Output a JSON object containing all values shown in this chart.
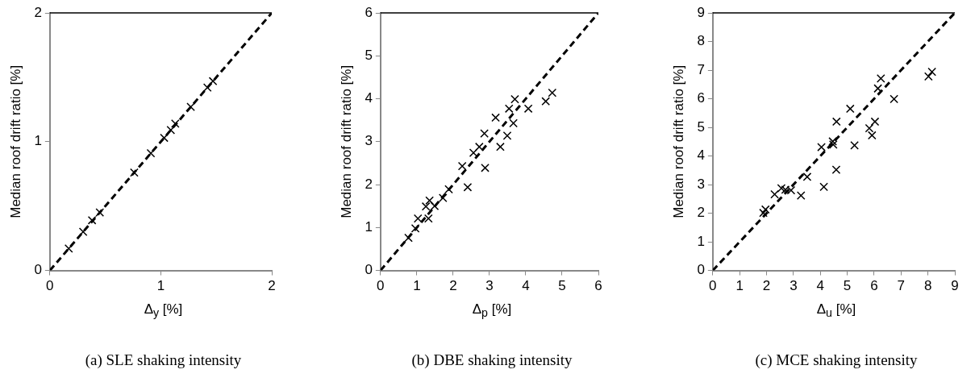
{
  "chart_data": [
    {
      "type": "scatter",
      "xlabel": "Δ$_{y}$ [%]",
      "ylabel": "Median roof drift ratio [%]",
      "xlim": [
        0,
        2
      ],
      "xticks": [
        0,
        1,
        2
      ],
      "ylim": [
        0,
        2
      ],
      "yticks": [
        0,
        1,
        2
      ],
      "grid": false,
      "annotations": [
        "(a) SLE shaking intensity"
      ],
      "series": [
        {
          "type": "scatter",
          "marker": "cross",
          "color": "#000000",
          "x": [
            0.17,
            0.3,
            0.38,
            0.45,
            0.76,
            0.91,
            1.03,
            1.09,
            1.13,
            1.27,
            1.42,
            1.47
          ],
          "values": [
            0.17,
            0.3,
            0.39,
            0.45,
            0.76,
            0.91,
            1.03,
            1.09,
            1.14,
            1.27,
            1.42,
            1.47
          ]
        },
        {
          "type": "line",
          "marker": "none",
          "line_style": "dashed",
          "color": "#000000",
          "x": [
            0,
            2
          ],
          "values": [
            0,
            2
          ]
        }
      ]
    },
    {
      "type": "scatter",
      "xlabel": "Δ$_{p}$ [%]",
      "ylabel": "Median roof drift ratio [%]",
      "xlim": [
        0,
        6
      ],
      "xticks": [
        0,
        1,
        2,
        3,
        4,
        5,
        6
      ],
      "ylim": [
        0,
        6
      ],
      "yticks": [
        0,
        1,
        2,
        3,
        4,
        5,
        6
      ],
      "grid": false,
      "annotations": [
        "(b) DBE shaking intensity"
      ],
      "series": [
        {
          "type": "scatter",
          "marker": "cross",
          "color": "#000000",
          "x": [
            0.77,
            0.96,
            1.03,
            1.32,
            1.25,
            1.35,
            1.49,
            1.72,
            1.88,
            2.25,
            2.4,
            2.56,
            2.72,
            2.88,
            2.86,
            3.17,
            3.3,
            3.49,
            3.54,
            3.66,
            3.7,
            4.07,
            4.55,
            4.73
          ],
          "values": [
            0.76,
            0.98,
            1.21,
            1.21,
            1.49,
            1.63,
            1.5,
            1.69,
            1.89,
            2.43,
            1.94,
            2.74,
            2.88,
            2.39,
            3.19,
            3.56,
            2.88,
            3.14,
            3.77,
            3.43,
            3.99,
            3.77,
            3.94,
            4.14
          ]
        },
        {
          "type": "line",
          "marker": "none",
          "line_style": "dashed",
          "color": "#000000",
          "x": [
            0,
            6
          ],
          "values": [
            0,
            6
          ]
        }
      ]
    },
    {
      "type": "scatter",
      "xlabel": "Δ$_{u}$ [%]",
      "ylabel": "Median roof drift ratio [%]",
      "xlim": [
        0,
        9
      ],
      "xticks": [
        0,
        1,
        2,
        3,
        4,
        5,
        6,
        7,
        8,
        9
      ],
      "ylim": [
        0,
        9
      ],
      "yticks": [
        0,
        1,
        2,
        3,
        4,
        5,
        6,
        7,
        8,
        9
      ],
      "grid": false,
      "annotations": [
        "(c) MCE shaking intensity"
      ],
      "series": [
        {
          "type": "scatter",
          "marker": "cross",
          "color": "#000000",
          "x": [
            1.88,
            1.96,
            2.3,
            2.55,
            2.7,
            2.91,
            3.28,
            3.51,
            4.04,
            4.13,
            4.46,
            4.48,
            4.6,
            4.59,
            5.11,
            5.27,
            5.82,
            5.92,
            6.03,
            6.14,
            6.25,
            6.74,
            8.02,
            8.15
          ],
          "values": [
            2.01,
            2.13,
            2.66,
            2.87,
            2.82,
            2.8,
            2.62,
            3.27,
            4.31,
            2.92,
            4.51,
            4.4,
            5.2,
            3.52,
            5.65,
            4.37,
            4.97,
            4.72,
            5.2,
            6.36,
            6.71,
            5.99,
            6.78,
            6.94
          ]
        },
        {
          "type": "line",
          "marker": "none",
          "line_style": "dashed",
          "color": "#000000",
          "x": [
            0,
            9
          ],
          "values": [
            0,
            9
          ]
        }
      ]
    }
  ]
}
